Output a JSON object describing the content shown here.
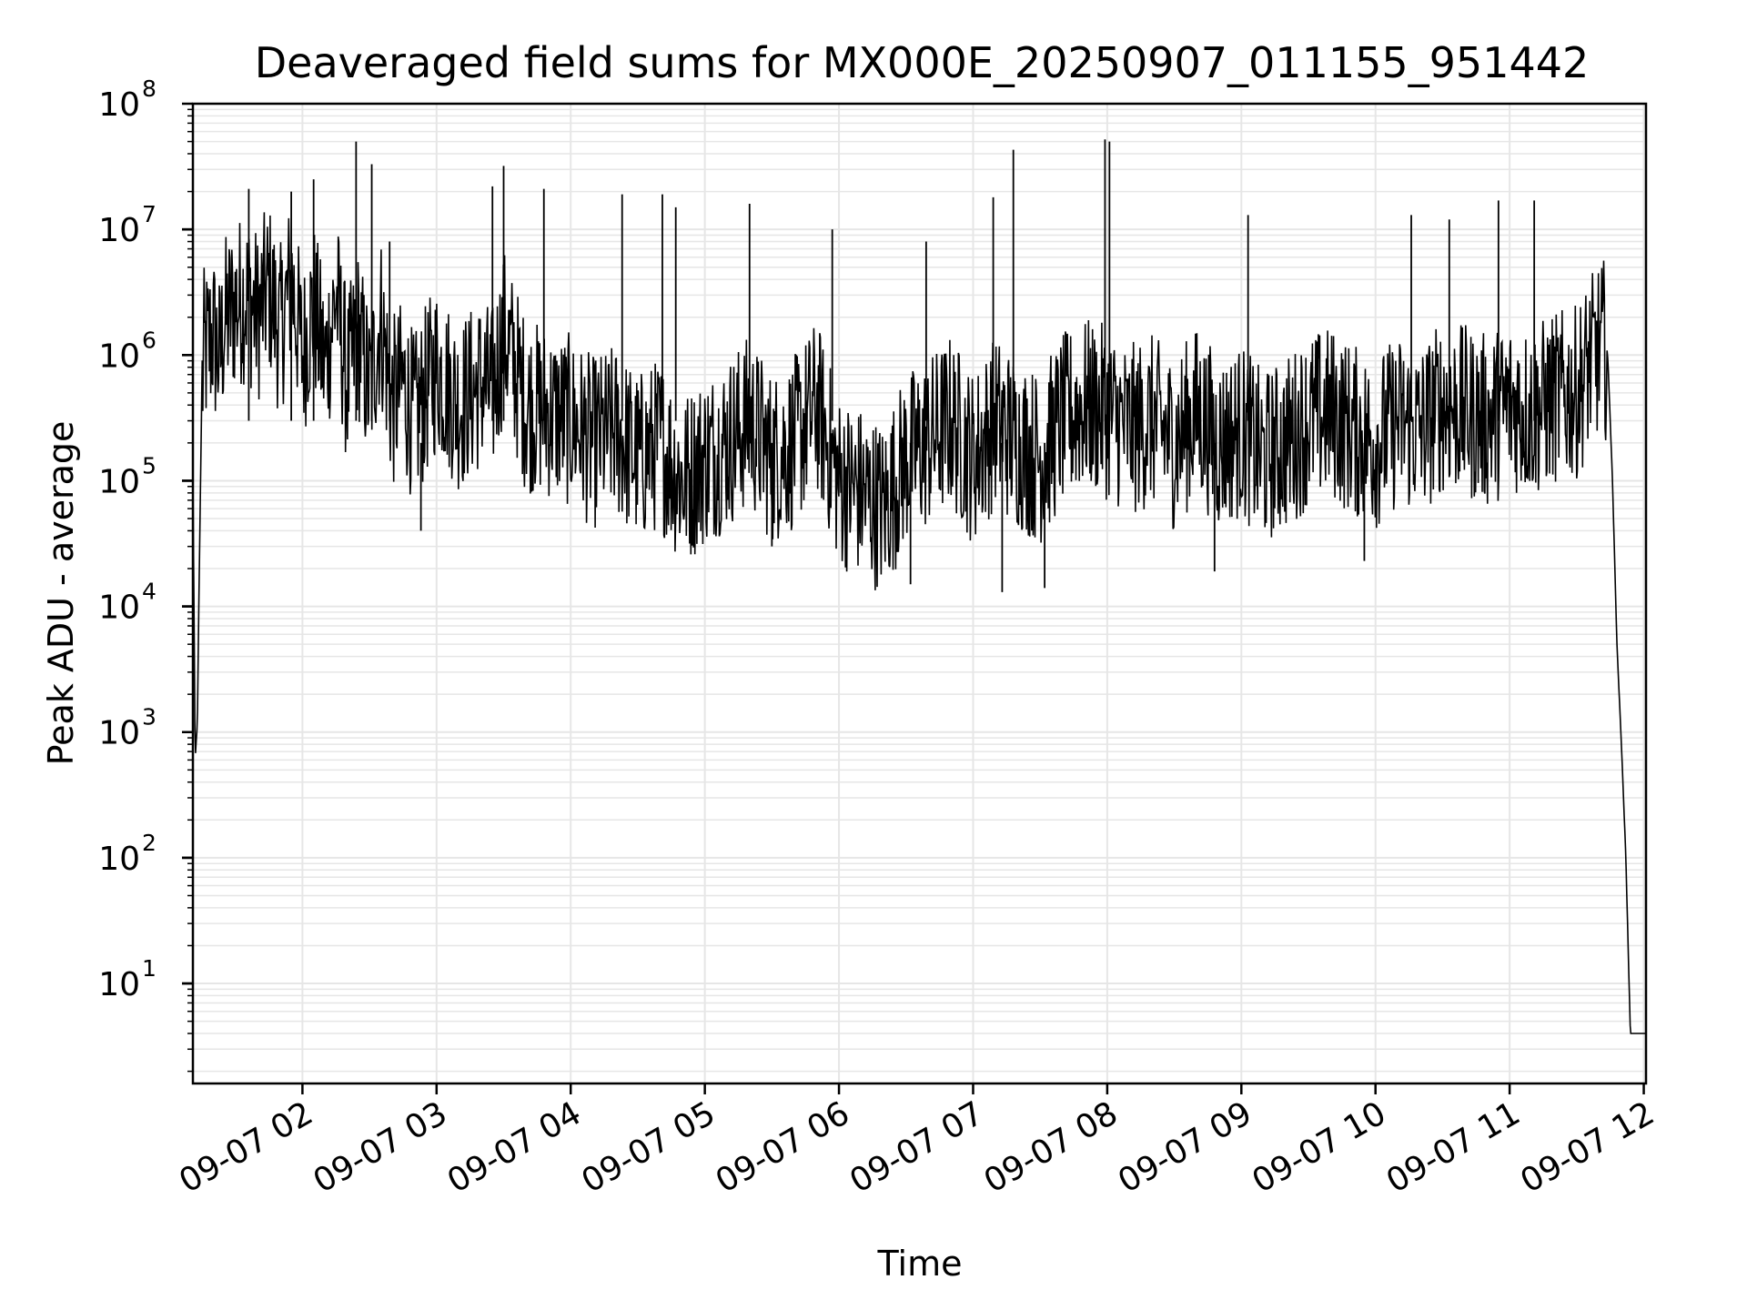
{
  "chart_data": {
    "type": "line",
    "title": "Deaveraged field sums for MX000E_20250907_011155_951442",
    "xlabel": "Time",
    "ylabel": "Peak ADU - average",
    "yscale": "log",
    "grid": true,
    "xlim": [
      "09-07 01:11",
      "09-07 12:01"
    ],
    "ylim": [
      1.6,
      100000000
    ],
    "y_ticks": [
      {
        "base": "10",
        "exp": "1",
        "value": 10
      },
      {
        "base": "10",
        "exp": "2",
        "value": 100
      },
      {
        "base": "10",
        "exp": "3",
        "value": 1000
      },
      {
        "base": "10",
        "exp": "4",
        "value": 10000
      },
      {
        "base": "10",
        "exp": "5",
        "value": 100000
      },
      {
        "base": "10",
        "exp": "6",
        "value": 1000000
      },
      {
        "base": "10",
        "exp": "7",
        "value": 10000000
      },
      {
        "base": "10",
        "exp": "8",
        "value": 100000000
      }
    ],
    "x_ticks": [
      {
        "label": "09-07 02",
        "time": "09-07 02:00"
      },
      {
        "label": "09-07 03",
        "time": "09-07 03:00"
      },
      {
        "label": "09-07 04",
        "time": "09-07 04:00"
      },
      {
        "label": "09-07 05",
        "time": "09-07 05:00"
      },
      {
        "label": "09-07 06",
        "time": "09-07 06:00"
      },
      {
        "label": "09-07 07",
        "time": "09-07 07:00"
      },
      {
        "label": "09-07 08",
        "time": "09-07 08:00"
      },
      {
        "label": "09-07 09",
        "time": "09-07 09:00"
      },
      {
        "label": "09-07 10",
        "time": "09-07 10:00"
      },
      {
        "label": "09-07 11",
        "time": "09-07 11:00"
      },
      {
        "label": "09-07 12",
        "time": "09-07 12:00"
      }
    ],
    "series": [
      {
        "color": "#000000",
        "x": [
          "09-07 01:11",
          "09-07 01:12",
          "09-07 01:13",
          "09-07 01:14",
          "09-07 01:15",
          "09-07 01:16",
          "09-07 01:18",
          "09-07 01:20",
          "09-07 01:23",
          "09-07 01:25",
          "09-07 01:30",
          "09-07 01:35",
          "09-07 01:40",
          "09-07 01:45",
          "09-07 01:50",
          "09-07 01:55",
          "09-07 02:00",
          "09-07 02:05",
          "09-07 02:10",
          "09-07 02:15",
          "09-07 02:20",
          "09-07 02:25",
          "09-07 02:30",
          "09-07 02:35",
          "09-07 02:40",
          "09-07 02:45",
          "09-07 02:50",
          "09-07 02:55",
          "09-07 03:00",
          "09-07 03:10",
          "09-07 03:20",
          "09-07 03:25",
          "09-07 03:30",
          "09-07 03:35",
          "09-07 03:40",
          "09-07 03:50",
          "09-07 04:00",
          "09-07 04:10",
          "09-07 04:20",
          "09-07 04:30",
          "09-07 04:40",
          "09-07 04:50",
          "09-07 05:00",
          "09-07 05:10",
          "09-07 05:20",
          "09-07 05:30",
          "09-07 05:40",
          "09-07 05:50",
          "09-07 06:00",
          "09-07 06:10",
          "09-07 06:20",
          "09-07 06:30",
          "09-07 06:40",
          "09-07 06:50",
          "09-07 07:00",
          "09-07 07:10",
          "09-07 07:20",
          "09-07 07:30",
          "09-07 07:40",
          "09-07 07:50",
          "09-07 08:00",
          "09-07 08:10",
          "09-07 08:20",
          "09-07 08:30",
          "09-07 08:40",
          "09-07 08:50",
          "09-07 09:00",
          "09-07 09:10",
          "09-07 09:20",
          "09-07 09:30",
          "09-07 09:40",
          "09-07 09:50",
          "09-07 10:00",
          "09-07 10:10",
          "09-07 10:20",
          "09-07 10:30",
          "09-07 10:40",
          "09-07 10:50",
          "09-07 11:00",
          "09-07 11:10",
          "09-07 11:20",
          "09-07 11:30",
          "09-07 11:35",
          "09-07 11:40",
          "09-07 11:42",
          "09-07 11:44",
          "09-07 11:46",
          "09-07 11:48",
          "09-07 11:50",
          "09-07 11:52",
          "09-07 11:54",
          "09-07 11:56",
          "09-07 11:58",
          "09-07 12:01"
        ],
        "y": [
          120000,
          600,
          1200,
          30000,
          500000,
          1000000,
          1200000,
          1500000,
          900000,
          1800000,
          2500000,
          3000000,
          2000000,
          3500000,
          1500000,
          4000000,
          1000000,
          2500000,
          800000,
          3000000,
          600000,
          1500000,
          500000,
          2000000,
          400000,
          600000,
          300000,
          500000,
          800000,
          400000,
          600000,
          500000,
          1500000,
          800000,
          400000,
          350000,
          300000,
          200000,
          250000,
          150000,
          200000,
          100000,
          150000,
          200000,
          300000,
          150000,
          200000,
          400000,
          100000,
          80000,
          60000,
          150000,
          200000,
          300000,
          150000,
          300000,
          200000,
          150000,
          300000,
          400000,
          350000,
          250000,
          300000,
          200000,
          350000,
          200000,
          250000,
          150000,
          200000,
          300000,
          350000,
          250000,
          200000,
          300000,
          250000,
          400000,
          350000,
          300000,
          400000,
          350000,
          450000,
          500000,
          800000,
          1100000,
          1200000,
          900000,
          100000,
          5000,
          800,
          100,
          4,
          4,
          4,
          4
        ],
        "spikes": [
          {
            "x": "09-07 01:36",
            "y": 21000000
          },
          {
            "x": "09-07 01:55",
            "y": 20000000
          },
          {
            "x": "09-07 02:05",
            "y": 25000000
          },
          {
            "x": "09-07 02:24",
            "y": 50000000
          },
          {
            "x": "09-07 02:31",
            "y": 33000000
          },
          {
            "x": "09-07 02:39",
            "y": 8000000
          },
          {
            "x": "09-07 03:25",
            "y": 22000000
          },
          {
            "x": "09-07 03:30",
            "y": 32000000
          },
          {
            "x": "09-07 03:48",
            "y": 21000000
          },
          {
            "x": "09-07 04:23",
            "y": 19000000
          },
          {
            "x": "09-07 04:41",
            "y": 19000000
          },
          {
            "x": "09-07 04:47",
            "y": 15000000
          },
          {
            "x": "09-07 05:20",
            "y": 16000000
          },
          {
            "x": "09-07 05:57",
            "y": 10000000
          },
          {
            "x": "09-07 06:39",
            "y": 8000000
          },
          {
            "x": "09-07 07:09",
            "y": 18000000
          },
          {
            "x": "09-07 07:18",
            "y": 43000000
          },
          {
            "x": "09-07 07:59",
            "y": 52000000
          },
          {
            "x": "09-07 08:01",
            "y": 50000000
          },
          {
            "x": "09-07 09:03",
            "y": 13000000
          },
          {
            "x": "09-07 10:16",
            "y": 13000000
          },
          {
            "x": "09-07 10:33",
            "y": 12000000
          },
          {
            "x": "09-07 10:55",
            "y": 17000000
          },
          {
            "x": "09-07 11:11",
            "y": 17000000
          }
        ],
        "dips": [
          {
            "x": "09-07 02:53",
            "y": 40000
          },
          {
            "x": "09-07 05:30",
            "y": 30000
          },
          {
            "x": "09-07 06:32",
            "y": 15000
          },
          {
            "x": "09-07 07:13",
            "y": 13000
          },
          {
            "x": "09-07 07:32",
            "y": 14000
          },
          {
            "x": "09-07 08:48",
            "y": 19000
          },
          {
            "x": "09-07 09:55",
            "y": 23000
          }
        ]
      }
    ]
  }
}
